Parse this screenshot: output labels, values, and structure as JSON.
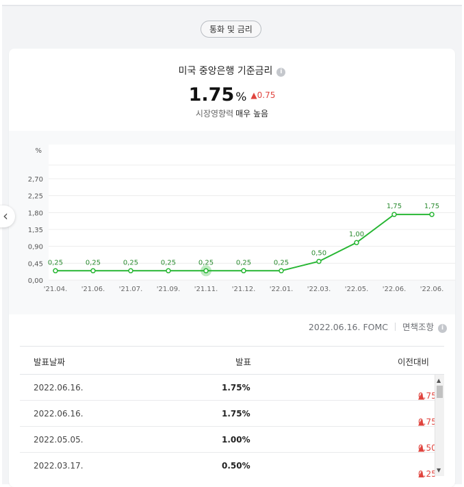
{
  "section_label": "통화 및 금리",
  "card": {
    "title": "미국 중앙은행 기준금리",
    "rate_value": "1.75",
    "rate_unit": "%",
    "rate_change": "0.75",
    "impact_label": "시장영향력",
    "impact_value": "매우 높음"
  },
  "colors": {
    "line": "#27b633",
    "up": "#e0443e"
  },
  "chart_data": {
    "type": "line",
    "ylabel": "%",
    "ylim": [
      0,
      2.7
    ],
    "yticks": [
      "0,00",
      "0,45",
      "0,90",
      "1,35",
      "1,80",
      "2,25",
      "2,70"
    ],
    "categories": [
      "'21.04.",
      "'21.06.",
      "'21.07.",
      "'21.09.",
      "'21.11.",
      "'21.12.",
      "'22.01.",
      "'22.03.",
      "'22.05.",
      "'22.06.",
      "'22.06."
    ],
    "values": [
      0.25,
      0.25,
      0.25,
      0.25,
      0.25,
      0.25,
      0.25,
      0.5,
      1.0,
      1.75,
      1.75
    ],
    "value_labels": [
      "0,25",
      "0,25",
      "0,25",
      "0,25",
      "0,25",
      "0,25",
      "0,25",
      "0,50",
      "1,00",
      "1,75",
      "1,75"
    ],
    "highlight_index": 4
  },
  "footer": {
    "source": "2022.06.16. FOMC",
    "disclaimer": "면책조항"
  },
  "table": {
    "headers": {
      "date": "발표날짜",
      "value": "발표",
      "change": "이전대비"
    },
    "rows": [
      {
        "date": "2022.06.16.",
        "value": "1.75%",
        "change": "0.75"
      },
      {
        "date": "2022.06.16.",
        "value": "1.75%",
        "change": "0.75"
      },
      {
        "date": "2022.05.05.",
        "value": "1.00%",
        "change": "0.50"
      },
      {
        "date": "2022.03.17.",
        "value": "0.50%",
        "change": "0.25"
      }
    ]
  }
}
